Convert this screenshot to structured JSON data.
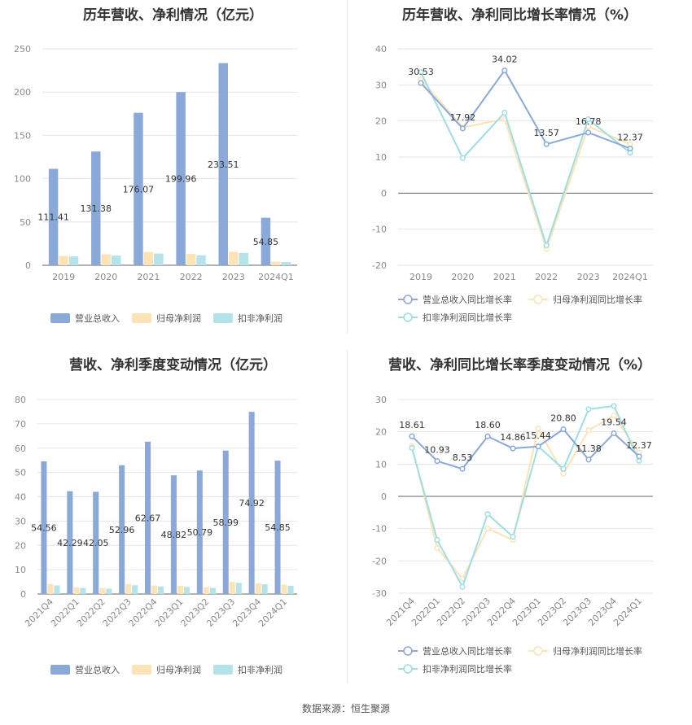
{
  "source": "数据来源：恒生聚源",
  "colors": {
    "revenue": "#8aa9d9",
    "net_parent": "#fde3b5",
    "net_deduct": "#b4e3e9",
    "rev_growth": "#8aa9d9",
    "parent_growth": "#fde3b5",
    "deduct_growth": "#9fdde4"
  },
  "chart_data": [
    {
      "id": "c1",
      "type": "bar",
      "title": "历年营收、净利情况（亿元）",
      "categories": [
        "2019",
        "2020",
        "2021",
        "2022",
        "2023",
        "2024Q1"
      ],
      "ylim": [
        0,
        250
      ],
      "yticks": [
        0,
        50,
        100,
        150,
        200,
        250
      ],
      "grid": true,
      "legend_position": "bottom",
      "series": [
        {
          "name": "营业总收入",
          "values": [
            111.41,
            131.38,
            176.07,
            199.96,
            233.51,
            54.85
          ],
          "labels": [
            "111.41",
            "131.38",
            "176.07",
            "199.96",
            "233.51",
            "54.85"
          ]
        },
        {
          "name": "归母净利润",
          "values": [
            10.9,
            12.8,
            15.3,
            13.0,
            15.5,
            4.2
          ]
        },
        {
          "name": "扣非净利润",
          "values": [
            10.2,
            11.2,
            13.6,
            11.5,
            14.1,
            3.7
          ]
        }
      ]
    },
    {
      "id": "c2",
      "type": "line",
      "title": "历年营收、净利同比增长率情况（%）",
      "categories": [
        "2019",
        "2020",
        "2021",
        "2022",
        "2023",
        "2024Q1"
      ],
      "ylim": [
        -20,
        40
      ],
      "yticks": [
        -20,
        -10,
        0,
        10,
        20,
        30,
        40
      ],
      "grid": true,
      "legend_position": "bottom",
      "series": [
        {
          "name": "营业总收入同比增长率",
          "values": [
            30.53,
            17.92,
            34.02,
            13.57,
            16.78,
            12.37
          ],
          "labels": [
            "30.53",
            "17.92",
            "34.02",
            "13.57",
            "16.78",
            "12.37"
          ]
        },
        {
          "name": "归母净利润同比增长率",
          "values": [
            31.5,
            18.2,
            20.5,
            -15.5,
            18.5,
            13.5
          ]
        },
        {
          "name": "扣非净利润同比增长率",
          "values": [
            33.5,
            9.7,
            22.3,
            -14.5,
            20.5,
            11.2
          ]
        }
      ]
    },
    {
      "id": "c3",
      "type": "bar",
      "title": "营收、净利季度变动情况（亿元）",
      "categories": [
        "2021Q4",
        "2022Q1",
        "2022Q2",
        "2022Q3",
        "2022Q4",
        "2023Q1",
        "2023Q2",
        "2023Q3",
        "2023Q4",
        "2024Q1"
      ],
      "ylim": [
        0,
        80
      ],
      "yticks": [
        0,
        10,
        20,
        30,
        40,
        50,
        60,
        70,
        80
      ],
      "grid": true,
      "legend_position": "bottom",
      "series": [
        {
          "name": "营业总收入",
          "values": [
            54.56,
            42.29,
            42.05,
            52.96,
            62.67,
            48.82,
            50.79,
            58.99,
            74.92,
            54.85
          ],
          "labels": [
            "54.56",
            "42.29",
            "42.05",
            "52.96",
            "62.67",
            "48.82",
            "50.79",
            "58.99",
            "74.92",
            "54.85"
          ]
        },
        {
          "name": "归母净利润",
          "values": [
            4.1,
            2.7,
            2.5,
            4.1,
            3.5,
            3.3,
            2.7,
            5.0,
            4.4,
            3.9
          ]
        },
        {
          "name": "扣非净利润",
          "values": [
            3.5,
            2.5,
            2.2,
            3.6,
            3.1,
            2.9,
            2.5,
            4.6,
            4.0,
            3.4
          ]
        }
      ]
    },
    {
      "id": "c4",
      "type": "line",
      "title": "营收、净利同比增长率季度变动情况（%）",
      "categories": [
        "2021Q4",
        "2022Q1",
        "2022Q2",
        "2022Q3",
        "2022Q4",
        "2023Q1",
        "2023Q2",
        "2023Q3",
        "2023Q4",
        "2024Q1"
      ],
      "ylim": [
        -30,
        30
      ],
      "yticks": [
        -30,
        -20,
        -10,
        0,
        10,
        20,
        30
      ],
      "grid": true,
      "legend_position": "bottom",
      "series": [
        {
          "name": "营业总收入同比增长率",
          "values": [
            18.61,
            10.93,
            8.53,
            18.6,
            14.86,
            15.44,
            20.8,
            11.38,
            19.54,
            12.37
          ],
          "labels": [
            "18.61",
            "10.93",
            "8.53",
            "18.60",
            "14.86",
            "15.44",
            "20.80",
            "11.38",
            "19.54",
            "12.37"
          ]
        },
        {
          "name": "归母净利润同比增长率",
          "values": [
            15.5,
            -16.0,
            -25.5,
            -10.0,
            -13.5,
            21.0,
            7.0,
            20.5,
            25.0,
            13.5
          ]
        },
        {
          "name": "扣非净利润同比增长率",
          "values": [
            15.0,
            -13.5,
            -28.0,
            -5.5,
            -12.5,
            15.5,
            8.5,
            27.0,
            28.0,
            11.0
          ]
        }
      ]
    }
  ]
}
